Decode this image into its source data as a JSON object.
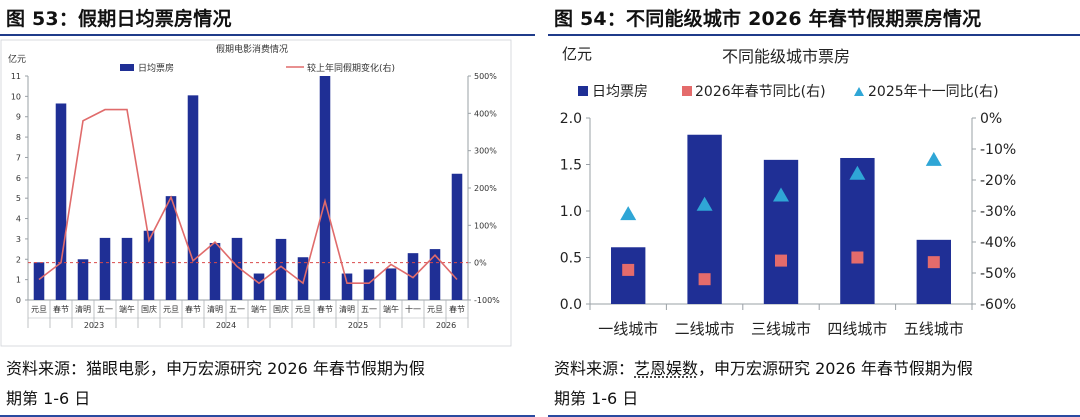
{
  "left_panel": {
    "figure_title": "图 53：假期日均票房情况",
    "source_prefix": "资料来源：猫眼电影，申万宏源研究  2026 年春节假期为假",
    "source_suffix": "期第 1-6 日"
  },
  "right_panel": {
    "figure_title": "图 54：不同能级城市 2026 年春节假期票房情况",
    "source_prefix": "资料来源：",
    "source_link": "艺恩娱数",
    "source_middle": "，申万宏源研究  2026 年春节假期为假",
    "source_suffix": "期第 1-6 日"
  },
  "colors": {
    "bar": "#1f2f95",
    "line": "#e06b6b",
    "square": "#e46b6b",
    "triangle": "#2fa6d6",
    "rule": "#1f3b8a"
  },
  "chart_data": [
    {
      "type": "bar",
      "title": "假期电影消费情况",
      "unit_label": "亿元",
      "ylim": [
        0,
        11
      ],
      "y2lim": [
        -100,
        500
      ],
      "y_ticks": [
        "0",
        "1",
        "2",
        "3",
        "4",
        "5",
        "6",
        "7",
        "8",
        "9",
        "10",
        "11"
      ],
      "y2_ticks": [
        "-100%",
        "0%",
        "100%",
        "200%",
        "300%",
        "400%",
        "500%"
      ],
      "categories": [
        "元旦",
        "春节",
        "清明",
        "五一",
        "端午",
        "国庆",
        "元旦",
        "春节",
        "清明",
        "五一",
        "端午",
        "国庆",
        "元旦",
        "春节",
        "清明",
        "五一",
        "端午",
        "十一",
        "元旦",
        "春节"
      ],
      "year_labels": [
        {
          "label": "2023",
          "start": 0,
          "end": 5
        },
        {
          "label": "2024",
          "start": 6,
          "end": 11
        },
        {
          "label": "2025",
          "start": 12,
          "end": 17
        },
        {
          "label": "2026",
          "start": 18,
          "end": 19
        }
      ],
      "series": [
        {
          "name": "日均票房",
          "kind": "bar",
          "axis": "left",
          "values": [
            1.85,
            9.65,
            2.0,
            3.05,
            3.05,
            3.4,
            5.1,
            10.05,
            2.8,
            3.05,
            1.3,
            3.0,
            2.1,
            11.0,
            1.3,
            1.5,
            1.55,
            2.3,
            2.5,
            6.2
          ]
        },
        {
          "name": "较上年同假期变化(右)",
          "kind": "line",
          "axis": "right",
          "values": [
            -45,
            0,
            380,
            410,
            410,
            60,
            175,
            5,
            55,
            -10,
            -55,
            -10,
            -55,
            165,
            -55,
            -55,
            -5,
            -40,
            20,
            -45
          ]
        }
      ],
      "reference_line": {
        "axis": "right",
        "value": 0,
        "style": "dashed"
      },
      "grid": false,
      "legend": "top"
    },
    {
      "type": "bar",
      "title": "不同能级城市票房",
      "unit_label": "亿元",
      "ylim": [
        0,
        2.0
      ],
      "y2lim": [
        -60,
        0
      ],
      "y_ticks": [
        "0.0",
        "0.5",
        "1.0",
        "1.5",
        "2.0"
      ],
      "y2_ticks": [
        "-60%",
        "-50%",
        "-40%",
        "-30%",
        "-20%",
        "-10%",
        "0%"
      ],
      "categories": [
        "一线城市",
        "二线城市",
        "三线城市",
        "四线城市",
        "五线城市"
      ],
      "series": [
        {
          "name": "日均票房",
          "kind": "bar",
          "axis": "left",
          "values": [
            0.61,
            1.82,
            1.55,
            1.57,
            0.69
          ]
        },
        {
          "name": "2026年春节同比(右)",
          "kind": "square",
          "axis": "right",
          "values": [
            -49,
            -52,
            -46,
            -45,
            -46.5
          ]
        },
        {
          "name": "2025年十一同比(右)",
          "kind": "triangle",
          "axis": "right",
          "values": [
            -31,
            -28,
            -25,
            -18,
            -13.5
          ]
        }
      ],
      "grid": false,
      "legend": "top-left"
    }
  ]
}
